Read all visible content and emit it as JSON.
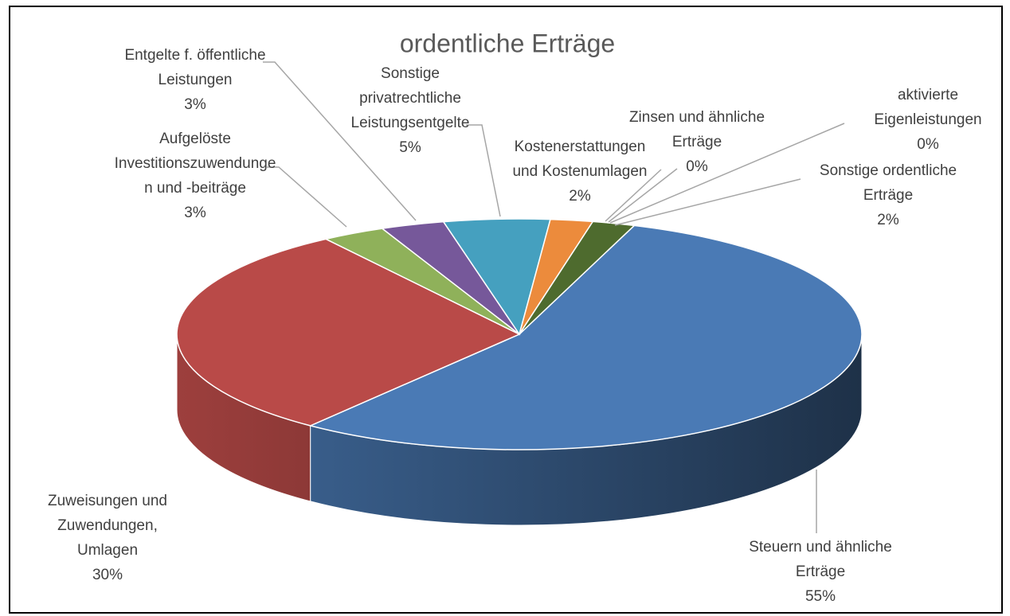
{
  "chart_data": {
    "type": "pie3d",
    "title": "ordentliche Erträge",
    "categories": [
      "Steuern und ähnliche\nErträge",
      "Zuweisungen und\nZuwendungen,\nUmlagen",
      "Aufgelöste\nInvestitionszuwendunge\nn und -beiträge",
      "Entgelte f. öffentliche\nLeistungen",
      "Sonstige\nprivatrechtliche\nLeistungsentgelte",
      "Kostenerstattungen\nund Kostenumlagen",
      "Zinsen und ähnliche\nErträge",
      "aktivierte\nEigenleistungen",
      "Sonstige ordentliche\nErträge"
    ],
    "values": [
      55,
      30,
      3,
      3,
      5,
      2,
      0,
      0,
      2
    ],
    "value_labels": [
      "55%",
      "30%",
      "3%",
      "3%",
      "5%",
      "2%",
      "0%",
      "0%",
      "2%"
    ],
    "colors": [
      "#4a7ab5",
      "#b94a48",
      "#8fb15a",
      "#76589a",
      "#45a0bf",
      "#ec8b3c",
      "#9bb7d4",
      "#c0504d",
      "#4e6b2e"
    ]
  }
}
